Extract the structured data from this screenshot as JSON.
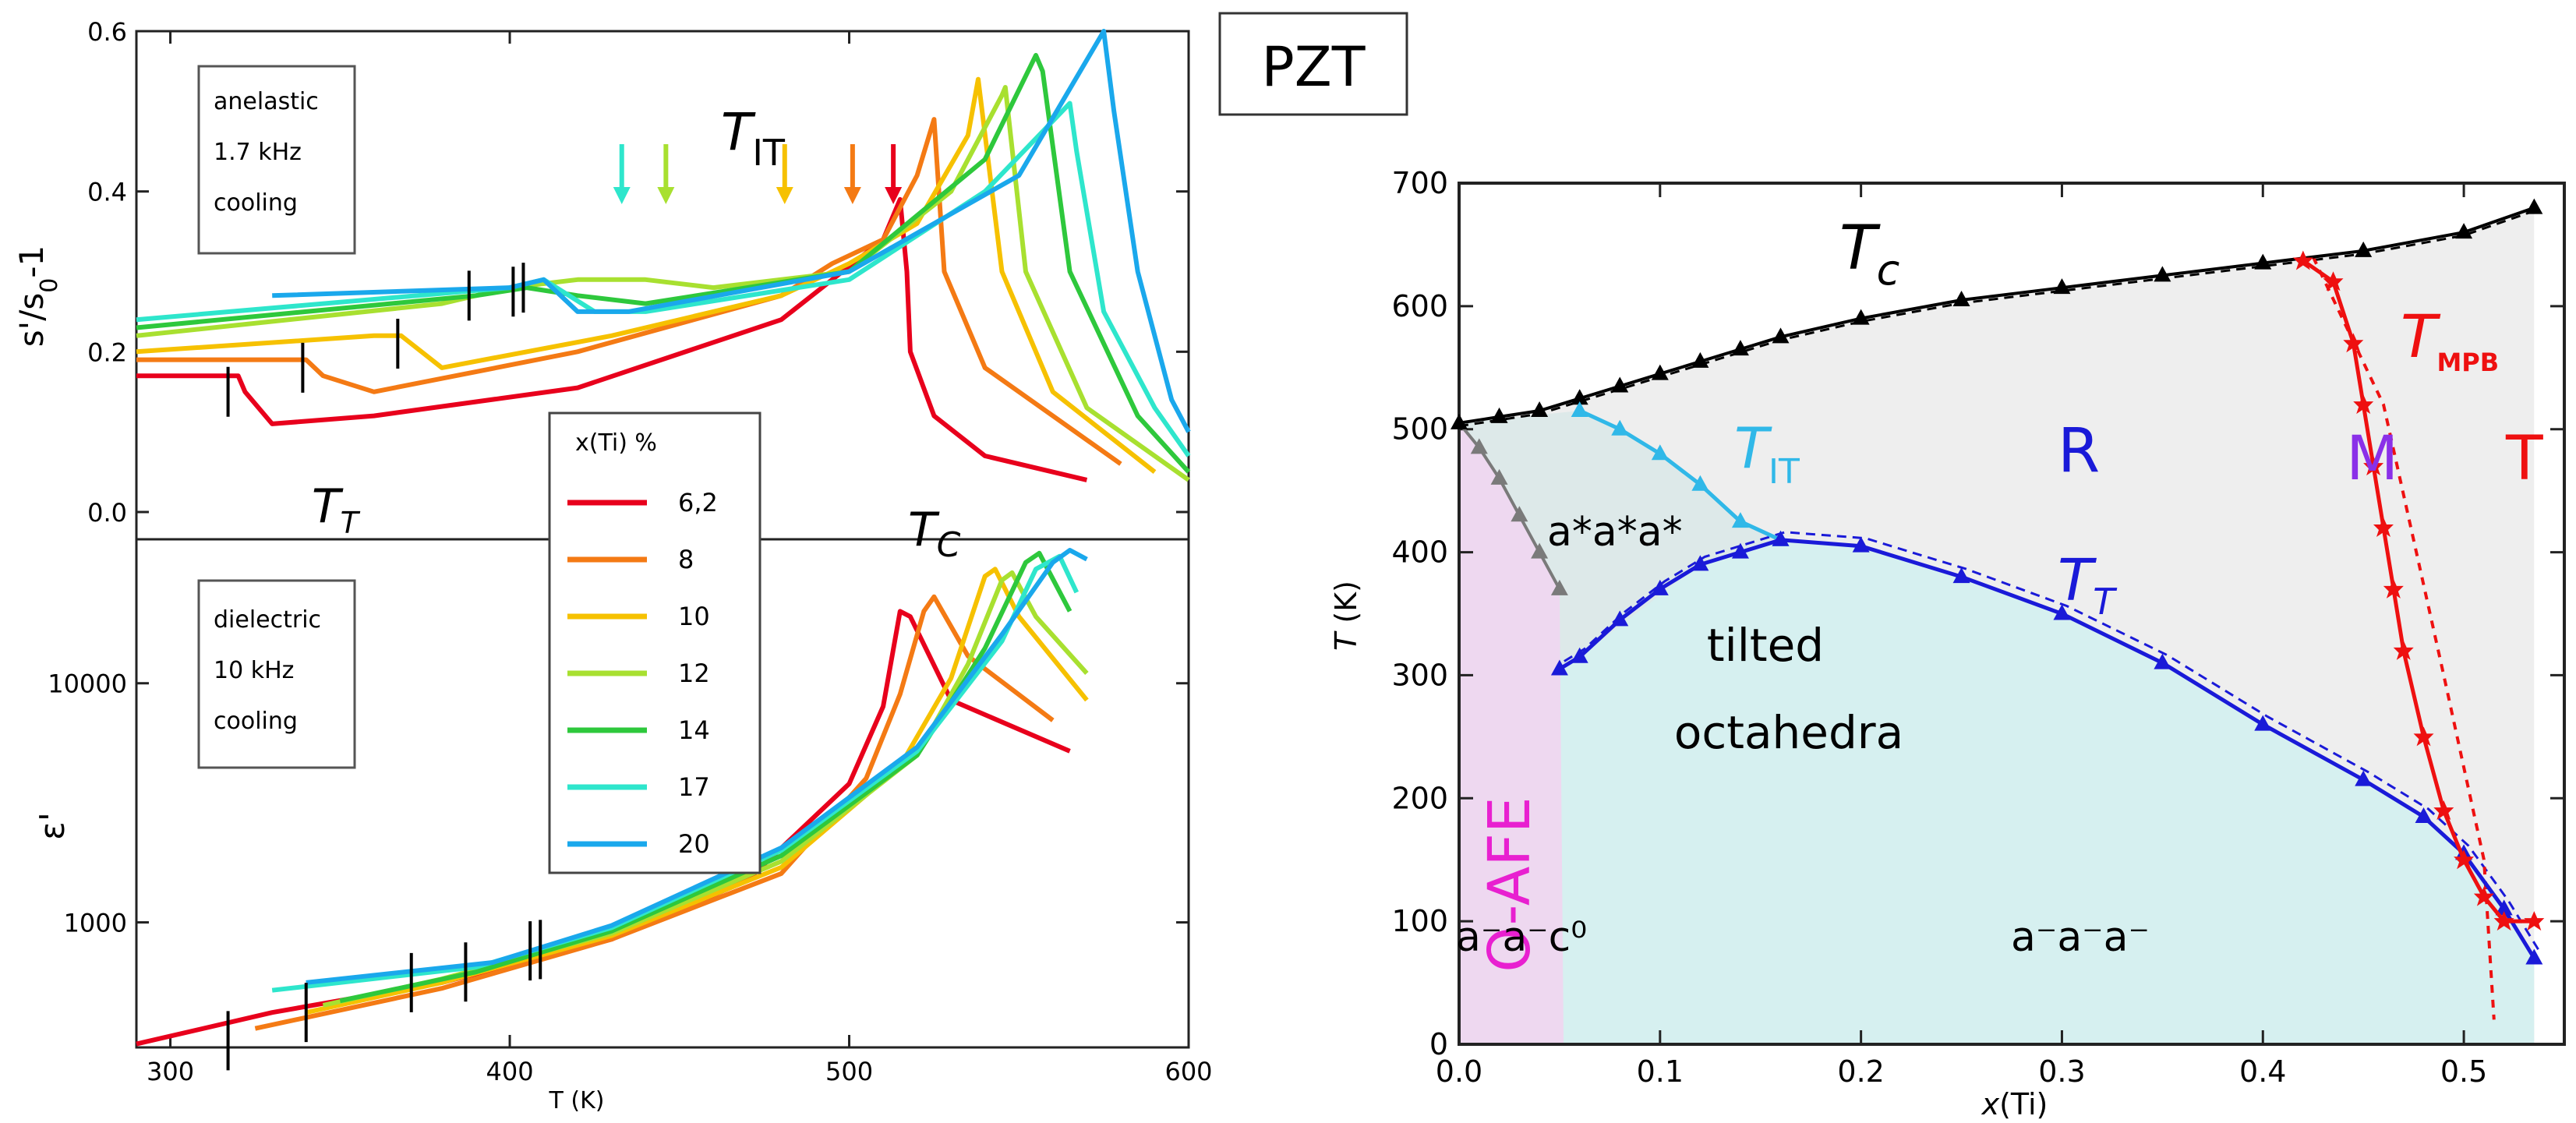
{
  "box_label": "PZT",
  "chart_data": [
    {
      "panel": "anelastic",
      "type": "line",
      "xlabel": "T (K)",
      "ylabel": "s'/s0-1",
      "xlim": [
        290,
        600
      ],
      "ylim": [
        0.0,
        0.6
      ],
      "yticks": [
        "0.0",
        "0.2",
        "0.4",
        "0.6"
      ],
      "info_lines": [
        "anelastic",
        "1.7 kHz",
        "cooling"
      ],
      "ann_TT": "T",
      "ann_TT_sub": "T",
      "ann_TIT": "T",
      "ann_TIT_sub": "IT",
      "series": [
        {
          "name": "6,2",
          "color": "#e8001c",
          "x": [
            290,
            320,
            322,
            330,
            360,
            420,
            480,
            510,
            515,
            517,
            518,
            525,
            540,
            570
          ],
          "y": [
            0.17,
            0.17,
            0.15,
            0.11,
            0.12,
            0.155,
            0.24,
            0.34,
            0.39,
            0.3,
            0.2,
            0.12,
            0.07,
            0.04
          ]
        },
        {
          "name": "8",
          "color": "#f47a14",
          "x": [
            290,
            340,
            345,
            360,
            420,
            480,
            495,
            500,
            510,
            520,
            525,
            528,
            540,
            580
          ],
          "y": [
            0.19,
            0.19,
            0.17,
            0.15,
            0.2,
            0.27,
            0.31,
            0.32,
            0.34,
            0.42,
            0.49,
            0.3,
            0.18,
            0.06
          ]
        },
        {
          "name": "10",
          "color": "#f6c100",
          "x": [
            290,
            360,
            368,
            380,
            430,
            470,
            480,
            500,
            520,
            535,
            538,
            545,
            560,
            590
          ],
          "y": [
            0.2,
            0.22,
            0.22,
            0.18,
            0.22,
            0.26,
            0.27,
            0.31,
            0.36,
            0.47,
            0.54,
            0.3,
            0.15,
            0.05
          ]
        },
        {
          "name": "12",
          "color": "#a8e030",
          "x": [
            290,
            380,
            400,
            420,
            440,
            460,
            500,
            530,
            545,
            546,
            552,
            570,
            600
          ],
          "y": [
            0.22,
            0.26,
            0.28,
            0.29,
            0.29,
            0.28,
            0.3,
            0.4,
            0.52,
            0.53,
            0.3,
            0.13,
            0.04
          ]
        },
        {
          "name": "14",
          "color": "#2ec83c",
          "x": [
            290,
            390,
            405,
            420,
            440,
            500,
            540,
            555,
            557,
            565,
            585,
            600
          ],
          "y": [
            0.23,
            0.27,
            0.28,
            0.27,
            0.26,
            0.3,
            0.44,
            0.57,
            0.55,
            0.3,
            0.12,
            0.05
          ]
        },
        {
          "name": "17",
          "color": "#2ee6cc",
          "x": [
            290,
            400,
            410,
            425,
            440,
            500,
            540,
            565,
            567,
            575,
            590,
            600
          ],
          "y": [
            0.24,
            0.28,
            0.29,
            0.25,
            0.25,
            0.29,
            0.4,
            0.51,
            0.45,
            0.25,
            0.13,
            0.07
          ]
        },
        {
          "name": "20",
          "color": "#1aa8ec",
          "x": [
            330,
            400,
            410,
            420,
            435,
            500,
            550,
            575,
            578,
            585,
            595,
            600
          ],
          "y": [
            0.27,
            0.28,
            0.29,
            0.25,
            0.25,
            0.3,
            0.42,
            0.6,
            0.5,
            0.3,
            0.14,
            0.1
          ]
        }
      ],
      "arrows": [
        {
          "x": 433,
          "color": "#2ee6cc"
        },
        {
          "x": 446,
          "color": "#a8e030"
        },
        {
          "x": 481,
          "color": "#f6c100"
        },
        {
          "x": 501,
          "color": "#f47a14"
        },
        {
          "x": 513,
          "color": "#e8001c"
        }
      ],
      "tick_marks": [
        {
          "x": 317,
          "y": 0.15
        },
        {
          "x": 339,
          "y": 0.18
        },
        {
          "x": 367,
          "y": 0.21
        },
        {
          "x": 388,
          "y": 0.27
        },
        {
          "x": 401,
          "y": 0.275
        },
        {
          "x": 404,
          "y": 0.28
        }
      ]
    },
    {
      "panel": "dielectric",
      "type": "line",
      "xlabel": "T (K)",
      "ylabel": "ε'",
      "xscale": "log-y",
      "xlim": [
        290,
        600
      ],
      "ylim": [
        300,
        40000
      ],
      "xticks": [
        "300",
        "400",
        "500",
        "600"
      ],
      "yticks": [
        "1000",
        "10000"
      ],
      "info_lines": [
        "dielectric",
        "10 kHz",
        "cooling"
      ],
      "ann_TC": "T",
      "ann_TC_sub": "C",
      "legend_title": "x(Ti) %",
      "series": [
        {
          "name": "6,2",
          "color": "#e8001c",
          "x": [
            290,
            330,
            380,
            430,
            470,
            500,
            510,
            515,
            518,
            530,
            565
          ],
          "y": [
            310,
            420,
            560,
            850,
            1500,
            3800,
            8000,
            20000,
            19000,
            8500,
            5200
          ]
        },
        {
          "name": "8",
          "color": "#f47a14",
          "x": [
            325,
            380,
            430,
            480,
            505,
            515,
            522,
            525,
            535,
            560
          ],
          "y": [
            360,
            530,
            850,
            1600,
            4000,
            9000,
            20000,
            23000,
            13000,
            7000
          ]
        },
        {
          "name": "10",
          "color": "#f6c100",
          "x": [
            340,
            380,
            430,
            480,
            515,
            530,
            540,
            543,
            550,
            570
          ],
          "y": [
            420,
            560,
            880,
            1700,
            4500,
            10500,
            28000,
            30000,
            19000,
            8500
          ]
        },
        {
          "name": "12",
          "color": "#a8e030",
          "x": [
            345,
            380,
            430,
            480,
            520,
            535,
            545,
            548,
            555,
            570
          ],
          "y": [
            450,
            580,
            900,
            1800,
            5000,
            12000,
            27000,
            29000,
            19000,
            11000
          ]
        },
        {
          "name": "14",
          "color": "#2ec83c",
          "x": [
            350,
            390,
            430,
            480,
            520,
            540,
            552,
            556,
            565
          ],
          "y": [
            470,
            620,
            920,
            1900,
            5000,
            14000,
            32000,
            35000,
            20000
          ]
        },
        {
          "name": "17",
          "color": "#2ee6cc",
          "x": [
            330,
            390,
            430,
            480,
            520,
            545,
            555,
            562,
            567
          ],
          "y": [
            520,
            650,
            950,
            2000,
            5200,
            15000,
            30000,
            34000,
            24000
          ]
        },
        {
          "name": "20",
          "color": "#1aa8ec",
          "x": [
            340,
            395,
            430,
            480,
            520,
            545,
            560,
            565,
            570
          ],
          "y": [
            560,
            680,
            970,
            2050,
            5400,
            16000,
            32000,
            36000,
            33000
          ]
        }
      ],
      "tick_marks": [
        {
          "x": 317,
          "y": 320
        },
        {
          "x": 340,
          "y": 420
        },
        {
          "x": 371,
          "y": 560
        },
        {
          "x": 387,
          "y": 620
        },
        {
          "x": 406,
          "y": 760
        },
        {
          "x": 409,
          "y": 770
        }
      ]
    },
    {
      "panel": "phase-diagram",
      "type": "line",
      "xlabel": "x(Ti)",
      "xlabel_var": "x",
      "xlabel_paren": "(Ti)",
      "ylabel": "T (K)",
      "xlim": [
        0.0,
        0.55
      ],
      "ylim": [
        0,
        700
      ],
      "xticks": [
        "0.0",
        "0.1",
        "0.2",
        "0.3",
        "0.4",
        "0.5"
      ],
      "yticks": [
        "0",
        "100",
        "200",
        "300",
        "400",
        "500",
        "600",
        "700"
      ],
      "series": [
        {
          "name": "T_C",
          "color": "#000000",
          "x": [
            0.0,
            0.02,
            0.04,
            0.06,
            0.08,
            0.1,
            0.12,
            0.14,
            0.16,
            0.2,
            0.25,
            0.3,
            0.35,
            0.4,
            0.45,
            0.5,
            0.535
          ],
          "y": [
            505,
            510,
            515,
            525,
            535,
            545,
            555,
            565,
            575,
            590,
            605,
            615,
            625,
            635,
            645,
            660,
            680
          ]
        },
        {
          "name": "T_IT",
          "color": "#30b8e8",
          "x": [
            0.06,
            0.08,
            0.1,
            0.12,
            0.14,
            0.16
          ],
          "y": [
            515,
            500,
            480,
            455,
            425,
            410
          ]
        },
        {
          "name": "T_T",
          "color": "#1a1ad8",
          "x": [
            0.05,
            0.06,
            0.08,
            0.1,
            0.12,
            0.14,
            0.16,
            0.2,
            0.25,
            0.3,
            0.35,
            0.4,
            0.45,
            0.48,
            0.5,
            0.52,
            0.535
          ],
          "y": [
            305,
            315,
            345,
            370,
            390,
            400,
            410,
            405,
            380,
            350,
            310,
            260,
            215,
            185,
            155,
            110,
            70
          ]
        },
        {
          "name": "T_MPB",
          "color": "#ee1010",
          "x": [
            0.42,
            0.435,
            0.445,
            0.45,
            0.455,
            0.46,
            0.465,
            0.47,
            0.48,
            0.49,
            0.5,
            0.51,
            0.52,
            0.535
          ],
          "y": [
            637,
            620,
            570,
            520,
            470,
            420,
            370,
            320,
            250,
            190,
            150,
            120,
            100,
            100
          ]
        },
        {
          "name": "AFE boundary",
          "color": "#7a7a7a",
          "x": [
            0.0,
            0.01,
            0.02,
            0.03,
            0.04,
            0.05
          ],
          "y": [
            505,
            485,
            460,
            430,
            400,
            370
          ]
        }
      ],
      "labels": {
        "tc": "T",
        "tc_sub": "c",
        "tit": "T",
        "tit_sub": "IT",
        "tt": "T",
        "tt_sub": "T",
        "tmpb": "T",
        "tmpb_sub": "MPB",
        "r": "R",
        "m": "M",
        "t": "T",
        "tilt": "a*a*a*",
        "tilted1": "tilted",
        "tilted2": "octahedra",
        "oafe": "O-AFE",
        "aac0": "a⁻a⁻c⁰",
        "aaa": "a⁻a⁻a⁻"
      },
      "colors": {
        "afe_fill": "#eed8f0",
        "tilt_fill": "#dde9e9",
        "tilted_fill": "#d6f0f0",
        "gray_fill": "#eeeeee"
      }
    }
  ]
}
